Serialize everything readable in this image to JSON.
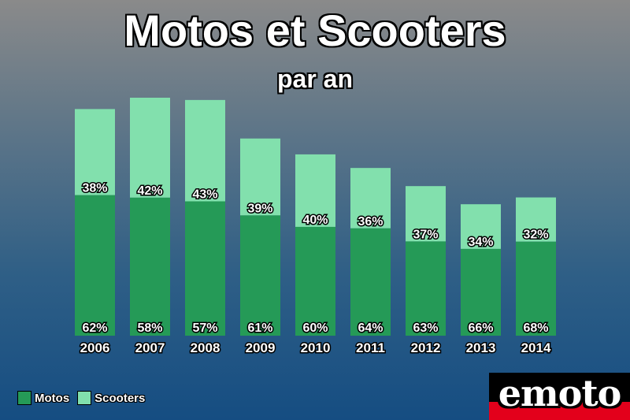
{
  "colors": {
    "motos": "#259a57",
    "scooters": "#82e0ad",
    "label_text": "#ffffff",
    "logo_red": "#e3001b"
  },
  "logo": {
    "text": "emoto"
  },
  "chart_data": {
    "type": "bar",
    "stacked": true,
    "title": "Motos et Scooters",
    "subtitle": "par an",
    "categories": [
      "2006",
      "2007",
      "2008",
      "2009",
      "2010",
      "2011",
      "2012",
      "2013",
      "2014"
    ],
    "series": [
      {
        "name": "Motos",
        "values": [
          62,
          58,
          57,
          61,
          60,
          64,
          63,
          66,
          68
        ],
        "labels": [
          "62%",
          "58%",
          "57%",
          "61%",
          "60%",
          "64%",
          "63%",
          "66%",
          "68%"
        ]
      },
      {
        "name": "Scooters",
        "values": [
          38,
          42,
          43,
          39,
          40,
          36,
          37,
          34,
          32
        ],
        "labels": [
          "38%",
          "42%",
          "43%",
          "39%",
          "40%",
          "36%",
          "37%",
          "34%",
          "32%"
        ]
      }
    ],
    "relative_totals": [
      100,
      105,
      104,
      87,
      80,
      74,
      66,
      58,
      61
    ],
    "grid": false,
    "y_axis_shown": false,
    "legend_position": "bottom-left"
  }
}
